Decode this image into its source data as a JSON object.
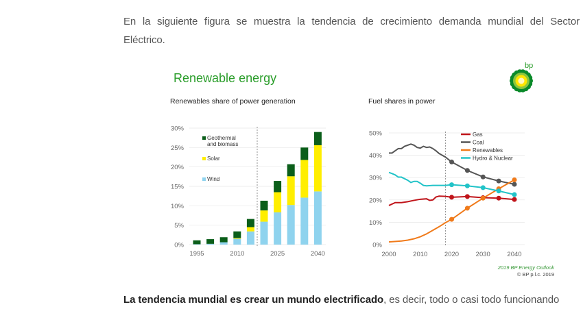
{
  "paragraph_1": {
    "line1": "En la siguiente figura se muestra la tendencia de crecimiento demanda mundial del Sector",
    "line2": "Eléctrico."
  },
  "paragraph_2": {
    "bold": "La tendencia mundial es crear un mundo electrificado",
    "rest": ", es decir, todo o casi todo funcionando"
  },
  "figure": {
    "title": "Renewable energy",
    "logo_text": "bp",
    "source": "2019 BP Energy Outlook",
    "copyright": "© BP p.l.c. 2019",
    "colors": {
      "title": "#2a9d2a",
      "wind": "#8fd3ee",
      "solar": "#ffee00",
      "geothermal": "#0b5e1a",
      "gas": "#c0141a",
      "coal": "#555555",
      "renewables": "#f07a1a",
      "hydro": "#22c3c8"
    }
  },
  "chart_data": [
    {
      "type": "bar",
      "stacked": true,
      "title": "Renewables share of power generation",
      "categories": [
        "1995",
        "2000",
        "2005",
        "2010",
        "2015",
        "2020",
        "2025",
        "2030",
        "2035",
        "2040"
      ],
      "xtick_labels": [
        "1995",
        "2010",
        "2025",
        "2040"
      ],
      "ytick_labels": [
        "0%",
        "5%",
        "10%",
        "15%",
        "20%",
        "25%",
        "30%"
      ],
      "ylim": [
        0,
        30
      ],
      "projection_divider": "between 2015 and 2020",
      "legend_position": "top-left",
      "series": [
        {
          "name": "Wind",
          "color": "#8fd3ee",
          "values": [
            0.1,
            0.2,
            0.6,
            1.5,
            3.4,
            5.9,
            8.3,
            10.2,
            12.1,
            13.7
          ]
        },
        {
          "name": "Solar",
          "color": "#ffee00",
          "values": [
            0,
            0,
            0,
            0.2,
            1.1,
            2.9,
            5.2,
            7.4,
            9.7,
            11.9
          ]
        },
        {
          "name": "Geothermal and biomass",
          "color": "#0b5e1a",
          "values": [
            1.0,
            1.2,
            1.3,
            1.7,
            2.1,
            2.5,
            2.9,
            3.1,
            3.2,
            3.4
          ]
        }
      ]
    },
    {
      "type": "line",
      "title": "Fuel shares in power",
      "xlim": [
        2000,
        2040
      ],
      "ylim": [
        0,
        50
      ],
      "xtick_labels": [
        "2000",
        "2010",
        "2020",
        "2030",
        "2040"
      ],
      "ytick_labels": [
        "0%",
        "10%",
        "20%",
        "30%",
        "40%",
        "50%"
      ],
      "projection_divider_year": 2018,
      "legend_position": "top-right",
      "series": [
        {
          "name": "Gas",
          "color": "#c0141a",
          "x": [
            2000,
            2002,
            2004,
            2006,
            2008,
            2010,
            2012,
            2013,
            2014,
            2015,
            2016,
            2018,
            2020,
            2025,
            2030,
            2035,
            2040
          ],
          "y": [
            17.5,
            18.8,
            18.8,
            19.2,
            19.8,
            20.3,
            20.5,
            19.8,
            20.0,
            21.3,
            21.7,
            21.6,
            21.2,
            21.5,
            21.0,
            20.8,
            20.2
          ]
        },
        {
          "name": "Coal",
          "color": "#555555",
          "x": [
            2000,
            2001,
            2002,
            2003,
            2004,
            2005,
            2007,
            2008,
            2009,
            2010,
            2011,
            2012,
            2013,
            2014,
            2015,
            2016,
            2018,
            2020,
            2025,
            2030,
            2035,
            2040
          ],
          "y": [
            41,
            41,
            42,
            43,
            43,
            44,
            45,
            44.5,
            43.5,
            43.2,
            44,
            43.5,
            43.7,
            43,
            42,
            40.8,
            39.2,
            37,
            33.2,
            30.3,
            28.5,
            27
          ]
        },
        {
          "name": "Renewables",
          "color": "#f07a1a",
          "x": [
            2000,
            2004,
            2006,
            2008,
            2010,
            2012,
            2014,
            2016,
            2018,
            2020,
            2025,
            2030,
            2035,
            2040
          ],
          "y": [
            1.2,
            1.6,
            2.0,
            2.6,
            3.5,
            4.8,
            6.4,
            8,
            9.8,
            11.3,
            16.3,
            20.8,
            25,
            29
          ]
        },
        {
          "name": "Hydro & Nuclear",
          "color": "#22c3c8",
          "x": [
            2000,
            2001,
            2002,
            2003,
            2004,
            2005,
            2006,
            2007,
            2008,
            2009,
            2010,
            2011,
            2012,
            2014,
            2016,
            2018,
            2020,
            2025,
            2030,
            2035,
            2040
          ],
          "y": [
            32.3,
            31.8,
            31.2,
            30.2,
            30.2,
            29.5,
            28.8,
            27.8,
            28.3,
            28.3,
            27.5,
            26.5,
            26.3,
            26.5,
            26.5,
            26.5,
            26.8,
            26.3,
            25.5,
            24,
            22.4
          ]
        }
      ],
      "marker_years": [
        2020,
        2025,
        2030,
        2035,
        2040
      ]
    }
  ]
}
